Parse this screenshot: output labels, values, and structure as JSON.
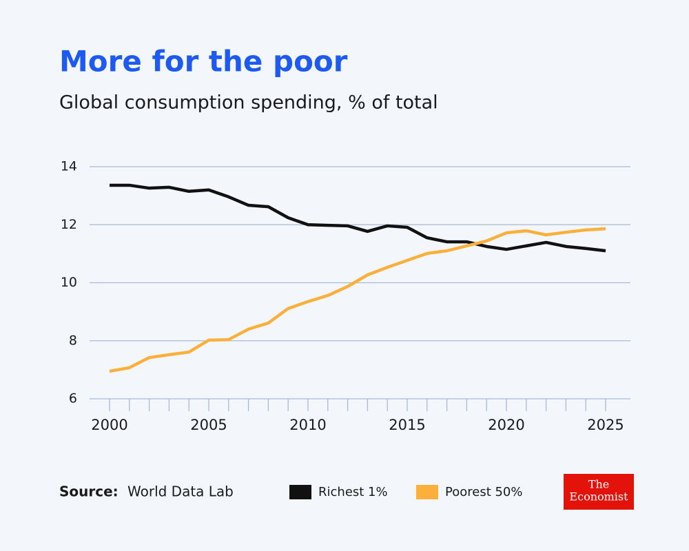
{
  "chart_data": {
    "type": "line",
    "title": "More for the poor",
    "subtitle": "Global consumption spending, % of total",
    "source_label": "Source:",
    "source": "World Data Lab",
    "logo": [
      "The",
      "Economist"
    ],
    "x": [
      2000,
      2001,
      2002,
      2003,
      2004,
      2005,
      2006,
      2007,
      2008,
      2009,
      2010,
      2011,
      2012,
      2013,
      2014,
      2015,
      2016,
      2017,
      2018,
      2019,
      2020,
      2021,
      2022,
      2023,
      2024,
      2025
    ],
    "series": [
      {
        "name": "Richest 1%",
        "color": "#111111",
        "values": [
          13.36,
          13.36,
          13.26,
          13.29,
          13.15,
          13.2,
          12.96,
          12.67,
          12.62,
          12.24,
          12.0,
          11.98,
          11.96,
          11.77,
          11.96,
          11.91,
          11.55,
          11.41,
          11.41,
          11.25,
          11.15,
          11.27,
          11.39,
          11.25,
          11.18,
          11.1
        ]
      },
      {
        "name": "Poorest 50%",
        "color": "#fbb03b",
        "values": [
          6.95,
          7.07,
          7.42,
          7.52,
          7.61,
          8.02,
          8.04,
          8.4,
          8.61,
          9.11,
          9.35,
          9.56,
          9.87,
          10.27,
          10.53,
          10.77,
          11.01,
          11.1,
          11.27,
          11.44,
          11.72,
          11.79,
          11.65,
          11.74,
          11.82,
          11.86
        ]
      }
    ],
    "xlim": [
      2000,
      2025
    ],
    "xticks": [
      2000,
      2005,
      2010,
      2015,
      2020,
      2025
    ],
    "ylim": [
      6,
      14
    ],
    "yticks": [
      6,
      8,
      10,
      12,
      14
    ],
    "grid": true
  }
}
